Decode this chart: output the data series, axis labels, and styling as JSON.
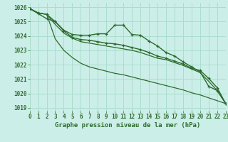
{
  "title": "Graphe pression niveau de la mer (hPa)",
  "bg_color": "#cceee8",
  "grid_color": "#aaddcc",
  "line_color": "#2d6b2d",
  "xlim": [
    0,
    23
  ],
  "ylim": [
    1018.8,
    1026.3
  ],
  "yticks": [
    1019,
    1020,
    1021,
    1022,
    1023,
    1024,
    1025,
    1026
  ],
  "xticks": [
    0,
    1,
    2,
    3,
    4,
    5,
    6,
    7,
    8,
    9,
    10,
    11,
    12,
    13,
    14,
    15,
    16,
    17,
    18,
    19,
    20,
    21,
    22,
    23
  ],
  "series": [
    {
      "y": [
        1025.9,
        1025.6,
        1025.5,
        1025.0,
        1024.4,
        1024.1,
        1024.05,
        1024.05,
        1024.15,
        1024.15,
        1024.75,
        1024.75,
        1024.1,
        1024.05,
        1023.65,
        1023.3,
        1022.85,
        1022.6,
        1022.2,
        1021.85,
        1021.5,
        1020.5,
        1020.2,
        1019.3
      ],
      "marker": true,
      "lw": 1.0
    },
    {
      "y": [
        1025.9,
        1025.55,
        1025.2,
        1025.0,
        1024.35,
        1023.9,
        1023.75,
        1023.7,
        1023.6,
        1023.5,
        1023.45,
        1023.35,
        1023.2,
        1023.05,
        1022.85,
        1022.6,
        1022.45,
        1022.25,
        1022.05,
        1021.75,
        1021.6,
        1021.05,
        1020.4,
        1019.3
      ],
      "marker": true,
      "lw": 1.0
    },
    {
      "y": [
        1025.9,
        1025.6,
        1025.5,
        1024.8,
        1024.2,
        1023.85,
        1023.6,
        1023.5,
        1023.4,
        1023.3,
        1023.2,
        1023.1,
        1023.0,
        1022.85,
        1022.65,
        1022.45,
        1022.35,
        1022.15,
        1021.95,
        1021.7,
        1021.45,
        1020.85,
        1020.2,
        1019.3
      ],
      "marker": false,
      "lw": 0.9
    },
    {
      "y": [
        1025.9,
        1025.6,
        1025.5,
        1023.8,
        1023.0,
        1022.5,
        1022.1,
        1021.85,
        1021.7,
        1021.55,
        1021.4,
        1021.3,
        1021.15,
        1021.0,
        1020.85,
        1020.7,
        1020.55,
        1020.4,
        1020.25,
        1020.05,
        1019.9,
        1019.7,
        1019.5,
        1019.3
      ],
      "marker": false,
      "lw": 0.9
    }
  ],
  "marker_style": "+",
  "marker_size": 3.5,
  "marker_lw": 0.9,
  "tick_fontsize": 5.5,
  "label_fontsize": 6.5
}
